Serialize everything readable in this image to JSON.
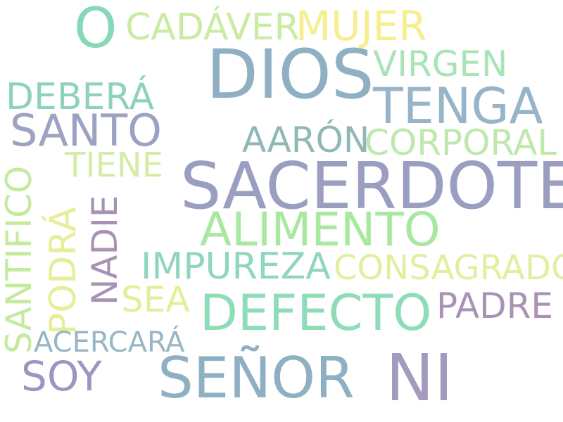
{
  "words": [
    {
      "text": "SACERDOTE",
      "color": "#9a9ec0"
    },
    {
      "text": "DIOS",
      "color": "#8fb0c2"
    },
    {
      "text": "SEÑOR",
      "color": "#8fb0c2"
    },
    {
      "text": "NI",
      "color": "#a49ac0"
    },
    {
      "text": "DEFECTO",
      "color": "#8fdcb8"
    },
    {
      "text": "ALIMENTO",
      "color": "#a9e8a0"
    },
    {
      "text": "TENGA",
      "color": "#97b4c8"
    },
    {
      "text": "O",
      "color": "#88d8b8"
    },
    {
      "text": "MUJER",
      "color": "#f6ee90"
    },
    {
      "text": "CADÁVER",
      "color": "#c9eba2"
    },
    {
      "text": "VIRGEN",
      "color": "#a9e4b6"
    },
    {
      "text": "DEBERÁ",
      "color": "#8fd2bc"
    },
    {
      "text": "SANTO",
      "color": "#9ba2c2"
    },
    {
      "text": "AARÓN",
      "color": "#8fb8b6"
    },
    {
      "text": "CORPORAL",
      "color": "#bfe8ad"
    },
    {
      "text": "TIENE",
      "color": "#d4eda4"
    },
    {
      "text": "SANTIFICO",
      "color": "#c4ea9e"
    },
    {
      "text": "PODRÁ",
      "color": "#e6ee98"
    },
    {
      "text": "NADIE",
      "color": "#a892b4"
    },
    {
      "text": "IMPUREZA",
      "color": "#8ed6be"
    },
    {
      "text": "CONSAGRADO",
      "color": "#dff0a0"
    },
    {
      "text": "SEA",
      "color": "#e2ee9a"
    },
    {
      "text": "PADRE",
      "color": "#aa92b4"
    },
    {
      "text": "ACERCARÁ",
      "color": "#98b6c6"
    },
    {
      "text": "SOY",
      "color": "#9a96c0"
    }
  ]
}
